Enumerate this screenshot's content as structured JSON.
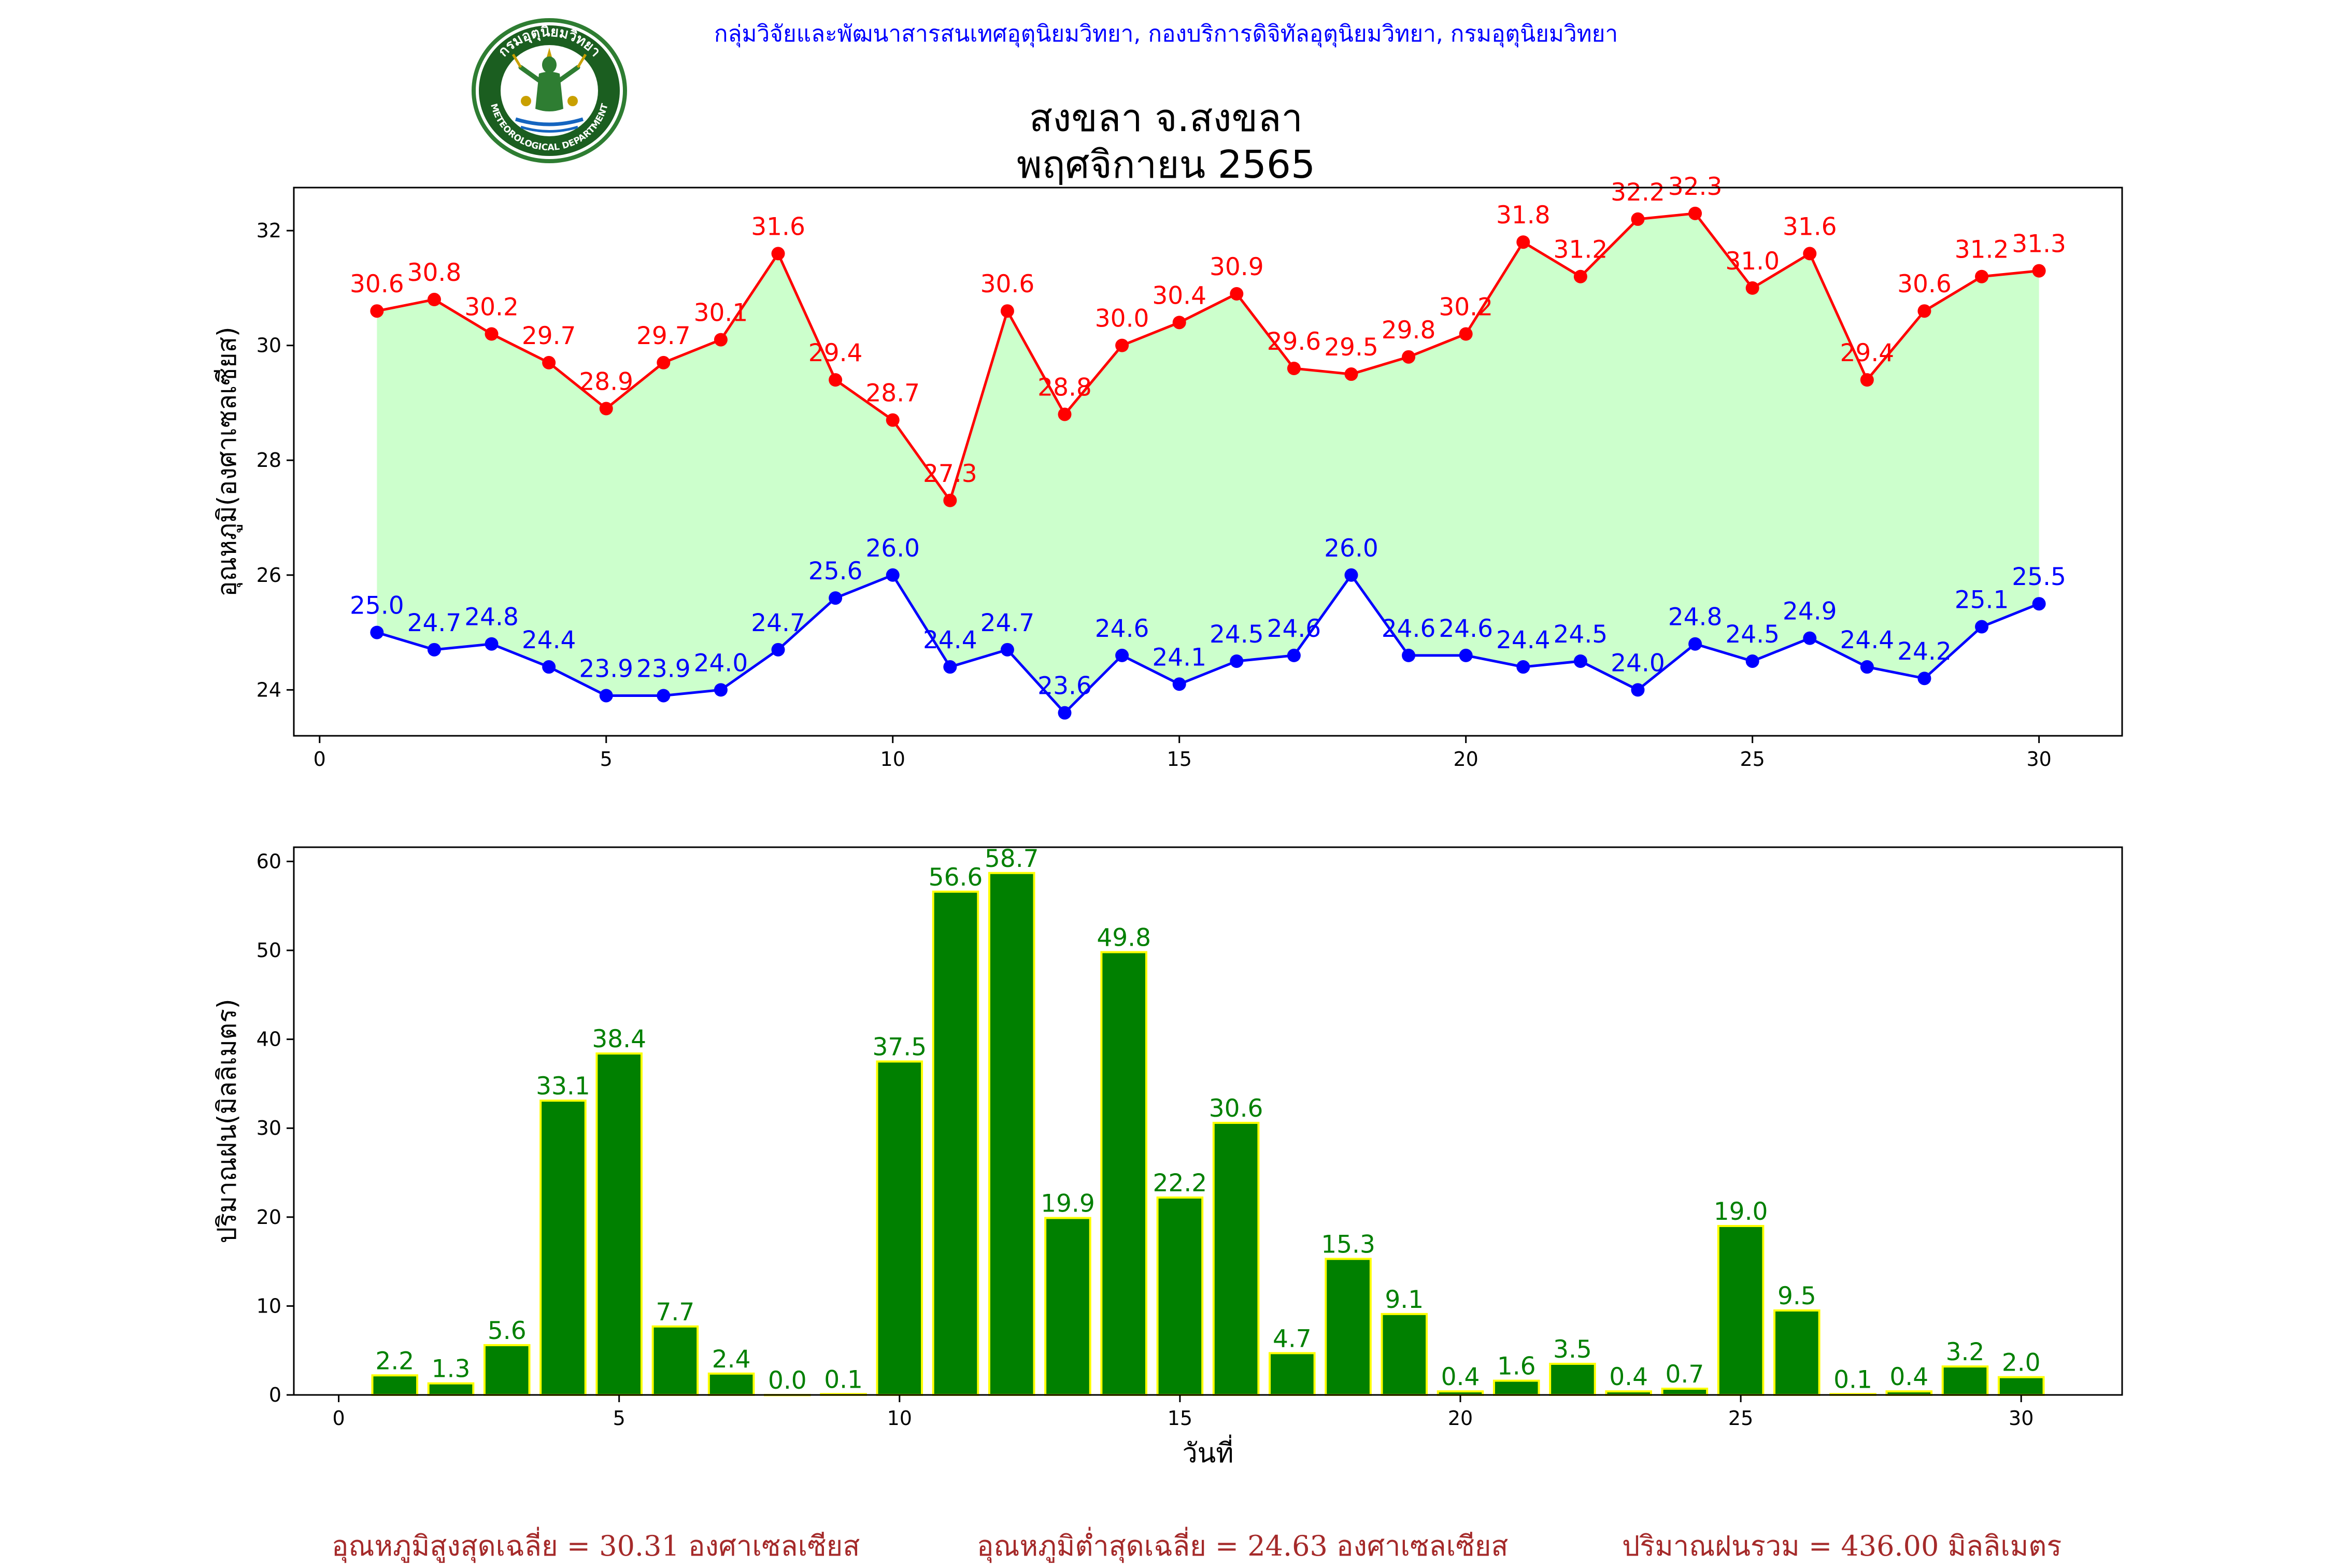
{
  "header": {
    "agency": "กลุ่มวิจัยและพัฒนาสารสนเทศอุตุนิยมวิทยา, กองบริการดิจิทัลอุตุนิยมวิทยา, กรมอุตุนิยมวิทยา",
    "title_line1": "สงขลา จ.สงขลา",
    "title_line2": "พฤศจิกายน 2565",
    "logo": {
      "icon": "meteorological-department-seal-icon",
      "text_top": "กรมอุตุนิยมวิทยา",
      "text_bottom": "METEOROLOGICAL DEPARTMENT"
    }
  },
  "colors": {
    "max_line": "#ff0000",
    "min_line": "#0000ff",
    "fill": "#ccffcc",
    "bar_fill": "#008000",
    "bar_edge": "#ffff00",
    "bar_label": "#008000",
    "summary_text": "#a52a2a",
    "agency_text": "#0000ff"
  },
  "chart_data": [
    {
      "type": "line",
      "ylabel": "อุณหภูมิ(องศาเซลเซียส)",
      "xlabel": "",
      "xlim": [
        -0.45,
        31.45
      ],
      "ylim": [
        23.2,
        32.75
      ],
      "xticks": [
        0,
        5,
        10,
        15,
        20,
        25,
        30
      ],
      "yticks": [
        24,
        26,
        28,
        30,
        32
      ],
      "grid": false,
      "fill_between": true,
      "x": [
        1,
        2,
        3,
        4,
        5,
        6,
        7,
        8,
        9,
        10,
        11,
        12,
        13,
        14,
        15,
        16,
        17,
        18,
        19,
        20,
        21,
        22,
        23,
        24,
        25,
        26,
        27,
        28,
        29,
        30
      ],
      "series": [
        {
          "values": [
            30.6,
            30.8,
            30.2,
            29.7,
            28.9,
            29.7,
            30.1,
            31.6,
            29.4,
            28.7,
            27.3,
            30.6,
            28.8,
            30.0,
            30.4,
            30.9,
            29.6,
            29.5,
            29.8,
            30.2,
            31.8,
            31.2,
            32.2,
            32.3,
            31.0,
            31.6,
            29.4,
            30.6,
            31.2,
            31.3
          ]
        },
        {
          "values": [
            25.0,
            24.7,
            24.8,
            24.4,
            23.9,
            23.9,
            24.0,
            24.7,
            25.6,
            26.0,
            24.4,
            24.7,
            23.6,
            24.6,
            24.1,
            24.5,
            24.6,
            26.0,
            24.6,
            24.6,
            24.4,
            24.5,
            24.0,
            24.8,
            24.5,
            24.9,
            24.4,
            24.2,
            25.1,
            25.5
          ]
        }
      ]
    },
    {
      "type": "bar",
      "ylabel": "ปริมาณฝน(มิลลิเมตร)",
      "xlabel": "วันที่",
      "xlim": [
        -0.8,
        31.8
      ],
      "ylim": [
        0,
        61.6
      ],
      "xticks": [
        0,
        5,
        10,
        15,
        20,
        25,
        30
      ],
      "yticks": [
        0,
        10,
        20,
        30,
        40,
        50,
        60
      ],
      "grid": false,
      "categories": [
        1,
        2,
        3,
        4,
        5,
        6,
        7,
        8,
        9,
        10,
        11,
        12,
        13,
        14,
        15,
        16,
        17,
        18,
        19,
        20,
        21,
        22,
        23,
        24,
        25,
        26,
        27,
        28,
        29,
        30
      ],
      "values": [
        2.2,
        1.3,
        5.6,
        33.1,
        38.4,
        7.7,
        2.4,
        0.0,
        0.1,
        37.5,
        56.6,
        58.7,
        19.9,
        49.8,
        22.2,
        30.6,
        4.7,
        15.3,
        9.1,
        0.4,
        1.6,
        3.5,
        0.4,
        0.7,
        19.0,
        9.5,
        0.1,
        0.4,
        3.2,
        2.0
      ]
    }
  ],
  "summary": {
    "avg_max": "อุณหภูมิสูงสุดเฉลี่ย = 30.31 องศาเซลเซียส",
    "avg_min": "อุณหภูมิต่ำสุดเฉลี่ย = 24.63 องศาเซลเซียส",
    "total_rain": "ปริมาณฝนรวม = 436.00 มิลลิเมตร"
  }
}
